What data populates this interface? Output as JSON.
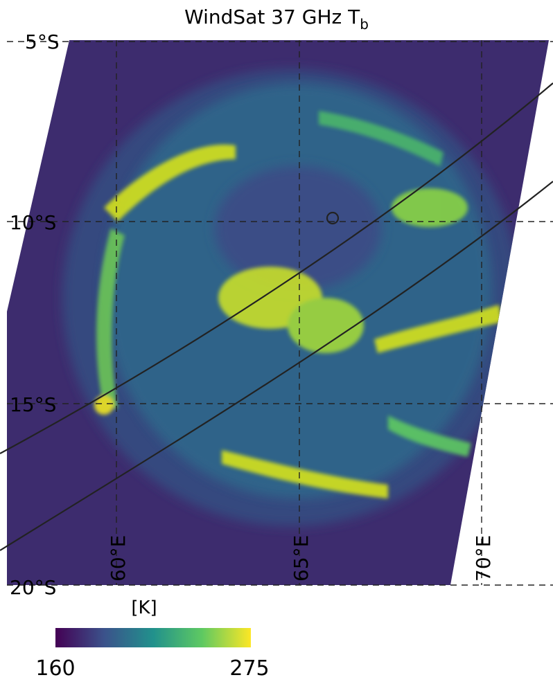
{
  "title": {
    "text": "WindSat 37 GHz T",
    "subscript": "b"
  },
  "map": {
    "latitudes": [
      "5°S",
      "10°S",
      "15°S",
      "20°S"
    ],
    "longitudes": [
      "60°E",
      "65°E",
      "70°E"
    ]
  },
  "colorbar": {
    "label": "[K]",
    "min": 160,
    "max": 275
  }
}
